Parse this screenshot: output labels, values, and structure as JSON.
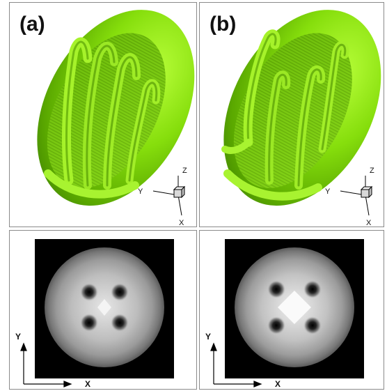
{
  "figure": {
    "panels": [
      {
        "label": "(a)",
        "axes3d": {
          "y": "Y",
          "z": "Z",
          "x": "X"
        }
      },
      {
        "label": "(b)",
        "axes3d": {
          "y": "Y",
          "z": "Z",
          "x": "X"
        }
      }
    ],
    "slices": [
      {
        "axes2d": {
          "x": "X",
          "y": "Y"
        },
        "vortices": 4
      },
      {
        "axes2d": {
          "x": "X",
          "y": "Y"
        },
        "vortices": 4
      }
    ]
  },
  "colors": {
    "surface": "#88e20e",
    "surface_dark": "#3f8a00",
    "slice_background": "#000000"
  }
}
